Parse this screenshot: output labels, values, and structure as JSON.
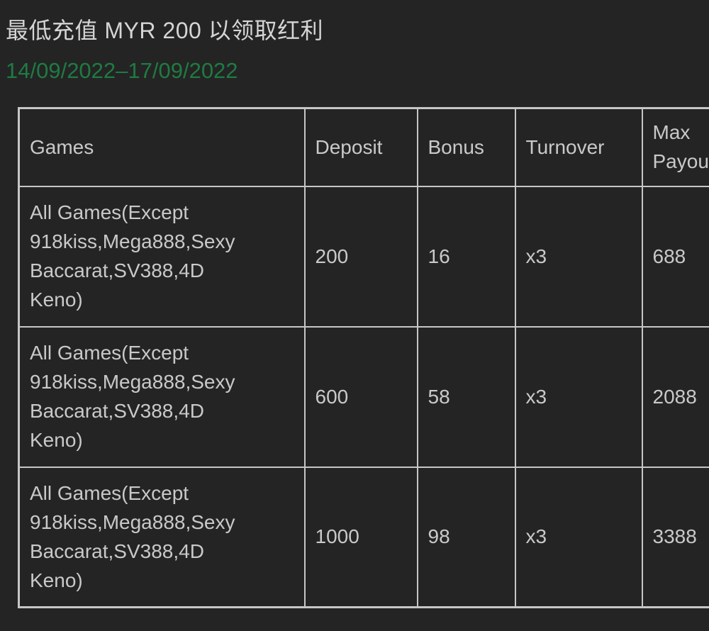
{
  "page": {
    "title": "最低充值 MYR 200 以领取红利",
    "date_range": "14/09/2022–17/09/2022"
  },
  "colors": {
    "background": "#242424",
    "title_text": "#d5d5d5",
    "date_text": "#1f7b42",
    "table_border": "#c6c6c6",
    "cell_text": "#c9c9c9"
  },
  "table": {
    "headers": [
      "Games",
      "Deposit",
      "Bonus",
      "Turnover",
      "Max Payout"
    ],
    "rows": [
      {
        "games": "All Games(Except 918kiss,Mega888,Sexy Baccarat,SV388,4D Keno)",
        "deposit": "200",
        "bonus": "16",
        "turnover": "x3",
        "max_payout": "688"
      },
      {
        "games": "All Games(Except 918kiss,Mega888,Sexy Baccarat,SV388,4D Keno)",
        "deposit": "600",
        "bonus": "58",
        "turnover": "x3",
        "max_payout": "2088"
      },
      {
        "games": "All Games(Except 918kiss,Mega888,Sexy Baccarat,SV388,4D Keno)",
        "deposit": "1000",
        "bonus": "98",
        "turnover": "x3",
        "max_payout": "3388"
      }
    ]
  }
}
